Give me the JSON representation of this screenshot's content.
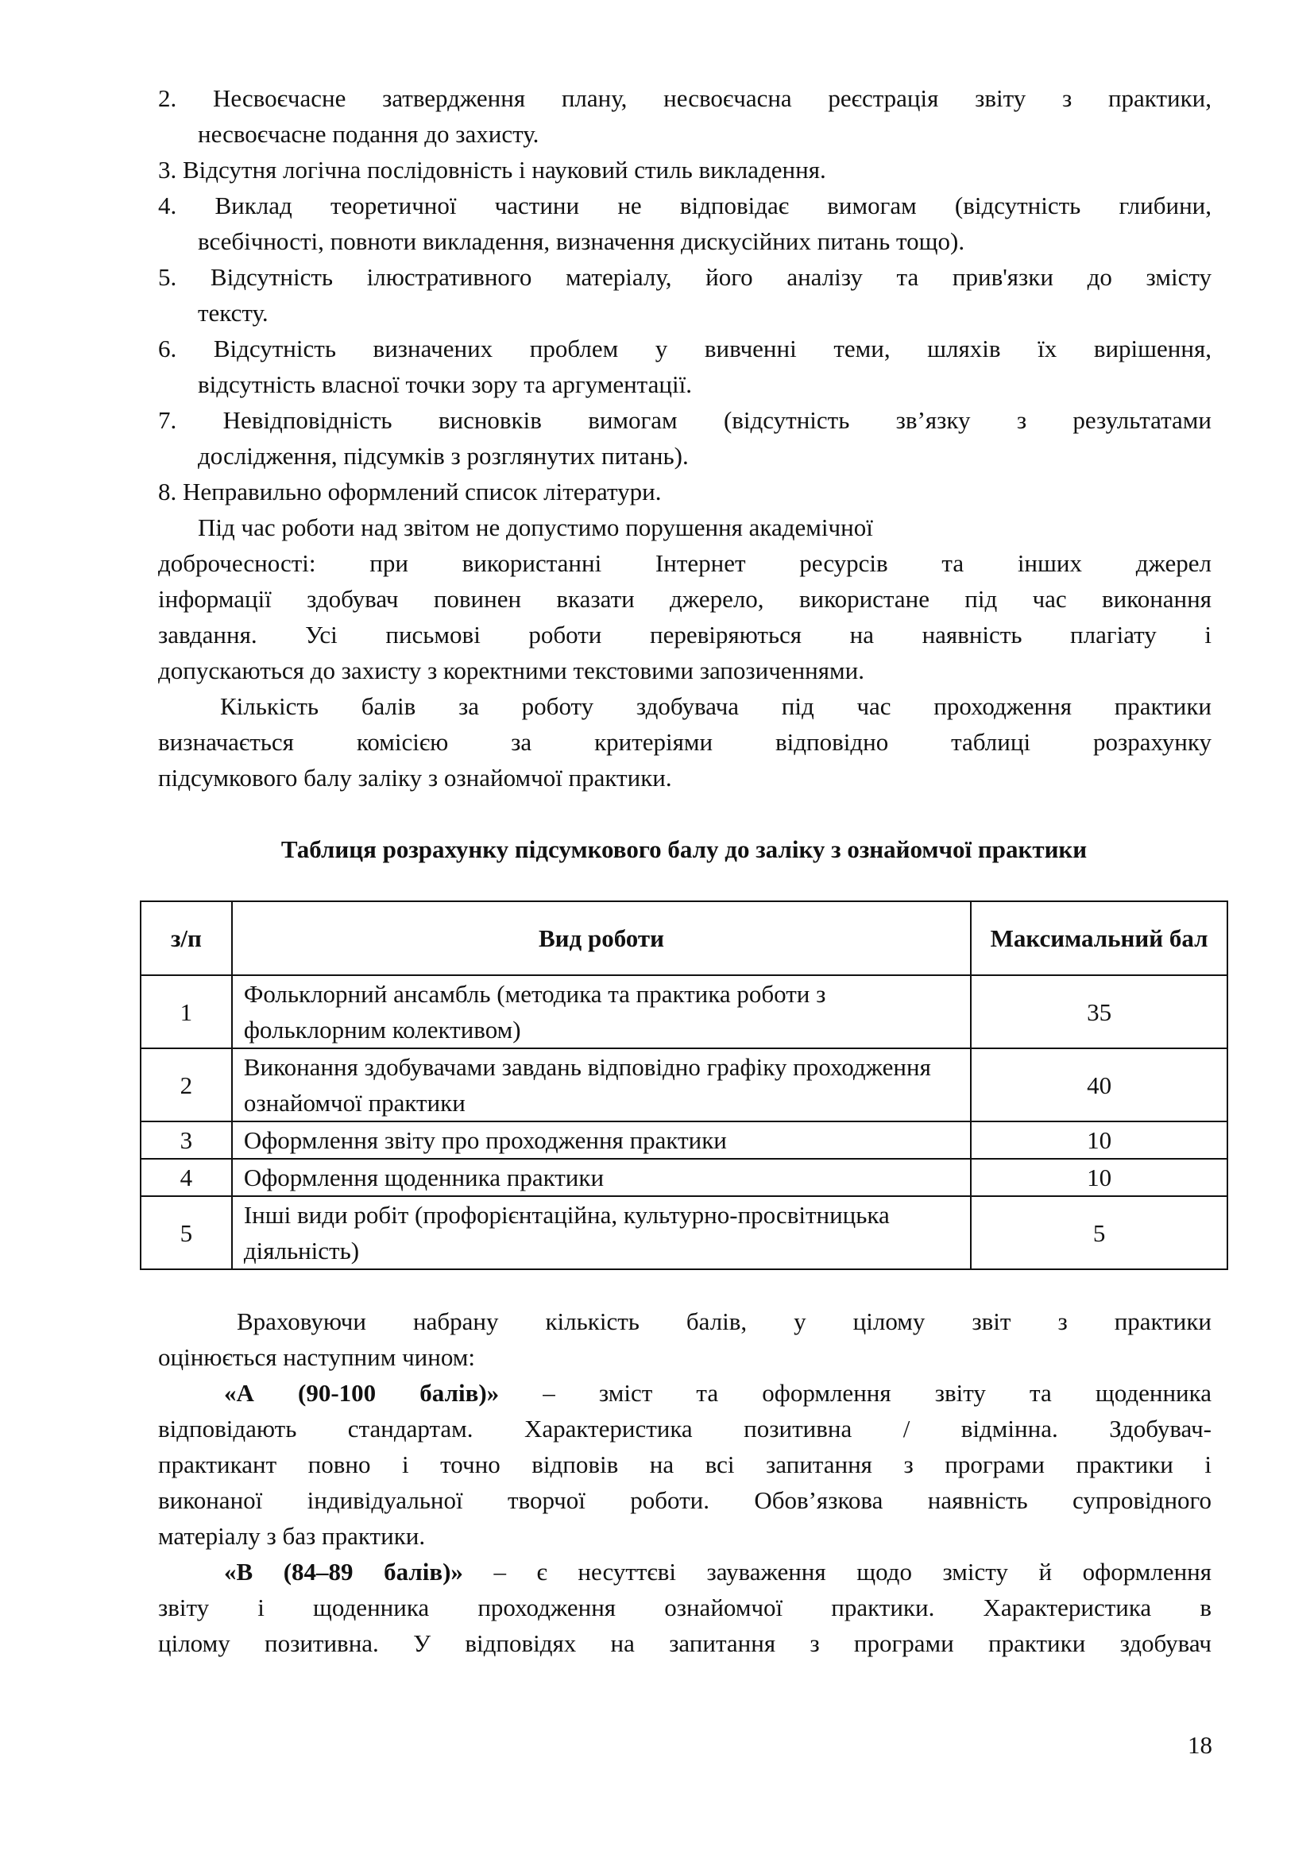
{
  "top_text": [
    {
      "kind": "item",
      "j": true,
      "text": "2. Несвоєчасне затвердження плану, несвоєчасна реєстрація звіту з практики,"
    },
    {
      "kind": "cont",
      "j": false,
      "text": "несвоєчасне подання до захисту."
    },
    {
      "kind": "item",
      "j": false,
      "text": "3. Відсутня логічна послідовність і науковий стиль викладення."
    },
    {
      "kind": "item",
      "j": true,
      "text": "4. Виклад теоретичної частини не відповідає вимогам (відсутність глибини,"
    },
    {
      "kind": "cont",
      "j": false,
      "text": "всебічності, повноти викладення, визначення дискусійних питань тощо)."
    },
    {
      "kind": "item",
      "j": true,
      "text": "5. Відсутність ілюстративного матеріалу, його аналізу та прив'язки до змісту"
    },
    {
      "kind": "cont",
      "j": false,
      "text": "тексту."
    },
    {
      "kind": "item",
      "j": true,
      "text": "6. Відсутність визначених проблем у вивченні теми, шляхів їх вирішення,"
    },
    {
      "kind": "cont",
      "j": false,
      "text": "відсутність власної точки зору та аргументації."
    },
    {
      "kind": "item",
      "j": true,
      "text": "7. Невідповідність висновків вимогам (відсутність зв’язку з результатами"
    },
    {
      "kind": "cont",
      "j": false,
      "text": "дослідження, підсумків з розглянутих питань)."
    },
    {
      "kind": "item",
      "j": false,
      "text": "8. Неправильно оформлений список літератури."
    },
    {
      "kind": "para",
      "j": false,
      "text": "Під час роботи над звітом не допустимо порушення академічної"
    },
    {
      "kind": "item",
      "j": true,
      "text": "доброчесності: при використанні Інтернет ресурсів та інших джерел"
    },
    {
      "kind": "item",
      "j": true,
      "text": "інформації здобувач повинен вказати джерело, використане під час виконання"
    },
    {
      "kind": "item",
      "j": true,
      "text": "завдання. Усі письмові роботи перевіряються на наявність плагіату і"
    },
    {
      "kind": "item",
      "j": false,
      "text": "допускаються до захисту з коректними текстовими запозиченнями."
    },
    {
      "kind": "para2",
      "j": true,
      "text": "Кількість балів за роботу здобувача під час проходження практики"
    },
    {
      "kind": "item",
      "j": true,
      "text": "визначається комісією за критеріями відповідно таблиці розрахунку"
    },
    {
      "kind": "item",
      "j": false,
      "text": "підсумкового балу заліку з ознайомчої практики."
    }
  ],
  "table_title": "Таблиця розрахунку підсумкового балу до заліку з ознайомчої практики",
  "table": {
    "headers": [
      "з/п",
      "Вид роботи",
      "Максимальний бал"
    ],
    "rows": [
      [
        "1",
        "Фольклорний ансамбль (методика та практика роботи з фольклорним колективом)",
        "35"
      ],
      [
        "2",
        "Виконання здобувачами завдань відповідно графіку проходження ознайомчої практики",
        "40"
      ],
      [
        "3",
        "Оформлення звіту про проходження практики",
        "10"
      ],
      [
        "4",
        "Оформлення щоденника практики",
        "10"
      ],
      [
        "5",
        "Інші види робіт (профорієнтаційна, культурно-просвітницька діяльність)",
        "5"
      ]
    ]
  },
  "bottom_text": [
    {
      "kind": "para3",
      "j": true,
      "text": "Враховуючи набрану кількість балів, у цілому звіт з практики"
    },
    {
      "kind": "item",
      "j": false,
      "text": "оцінюється наступним чином:"
    },
    {
      "kind": "parab",
      "j": true,
      "bold": "«А (90-100 балів)»",
      "text": " – зміст та оформлення звіту та щоденника"
    },
    {
      "kind": "item",
      "j": true,
      "text": "відповідають стандартам. Характеристика позитивна / відмінна. Здобувач-"
    },
    {
      "kind": "item",
      "j": true,
      "text": "практикант повно і точно відповів на всі запитання з програми практики і"
    },
    {
      "kind": "item",
      "j": true,
      "text": "виконаної індивідуальної творчої роботи. Обов’язкова наявність супровідного"
    },
    {
      "kind": "item",
      "j": false,
      "text": "матеріалу з баз практики."
    },
    {
      "kind": "parab",
      "j": true,
      "bold": "«В (84–89 балів)»",
      "text": " – є несуттєві зауваження щодо змісту й оформлення"
    },
    {
      "kind": "item",
      "j": true,
      "text": "звіту і щоденника проходження ознайомчої практики. Характеристика в"
    },
    {
      "kind": "item",
      "j": true,
      "text": "цілому позитивна. У відповідях на запитання з програми практики здобувач"
    }
  ],
  "page_number": "18"
}
